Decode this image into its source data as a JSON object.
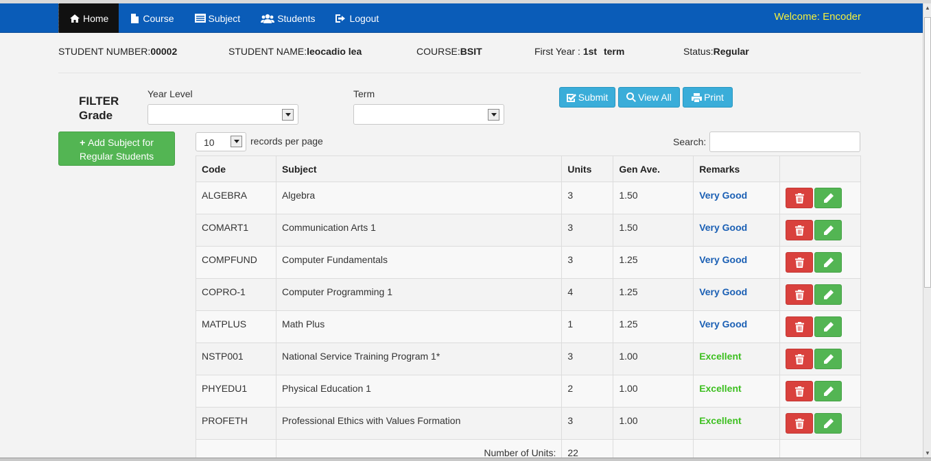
{
  "nav": {
    "items": [
      {
        "label": "Home",
        "icon": "home-icon"
      },
      {
        "label": "Course",
        "icon": "file-icon"
      },
      {
        "label": "Subject",
        "icon": "list-alt-icon"
      },
      {
        "label": "Students",
        "icon": "users-icon"
      },
      {
        "label": "Logout",
        "icon": "logout-icon"
      }
    ],
    "welcome": "Welcome: Encoder"
  },
  "student": {
    "number_label": "STUDENT NUMBER:",
    "number": "00002",
    "name_label": "STUDENT NAME:",
    "name": "leocadio lea",
    "course_label": "COURSE:",
    "course": "BSIT",
    "year_label": "First Year : ",
    "term_value": "1st",
    "term_label": "term",
    "status_label": "Status:",
    "status": "Regular"
  },
  "filter": {
    "title_line1": "FILTER",
    "title_line2": "Grade",
    "year_level_label": "Year Level",
    "term_label": "Term",
    "submit_label": "Submit",
    "view_all_label": "View All",
    "print_label": "Print"
  },
  "add_subject": {
    "line1": "Add Subject for",
    "line2": "Regular Students"
  },
  "table_controls": {
    "records_value": "10",
    "records_label": "records per page",
    "search_label": "Search:"
  },
  "table": {
    "headers": [
      "Code",
      "Subject",
      "Units",
      "Gen Ave.",
      "Remarks",
      ""
    ],
    "rows": [
      {
        "code": "ALGEBRA",
        "subject": "Algebra",
        "units": "3",
        "ave": "1.50",
        "remarks": "Very Good"
      },
      {
        "code": "COMART1",
        "subject": "Communication Arts 1",
        "units": "3",
        "ave": "1.50",
        "remarks": "Very Good"
      },
      {
        "code": "COMPFUND",
        "subject": "Computer Fundamentals",
        "units": "3",
        "ave": "1.25",
        "remarks": "Very Good"
      },
      {
        "code": "COPRO-1",
        "subject": "Computer Programming 1",
        "units": "4",
        "ave": "1.25",
        "remarks": "Very Good"
      },
      {
        "code": "MATPLUS",
        "subject": "Math Plus",
        "units": "1",
        "ave": "1.25",
        "remarks": "Very Good"
      },
      {
        "code": "NSTP001",
        "subject": "National Service Training Program 1*",
        "units": "3",
        "ave": "1.00",
        "remarks": "Excellent"
      },
      {
        "code": "PHYEDU1",
        "subject": "Physical Education 1",
        "units": "2",
        "ave": "1.00",
        "remarks": "Excellent"
      },
      {
        "code": "PROFETH",
        "subject": "Professional Ethics with Values Formation",
        "units": "3",
        "ave": "1.00",
        "remarks": "Excellent"
      }
    ],
    "total_label": "Number of Units:",
    "total_units": "22"
  },
  "colors": {
    "navbar": "#0a5cb8",
    "welcome": "#f5f03c",
    "very_good": "#1a5fb4",
    "excellent": "#3cbf1f",
    "delete": "#d9413d",
    "edit": "#53b553",
    "info": "#3aadd9"
  }
}
